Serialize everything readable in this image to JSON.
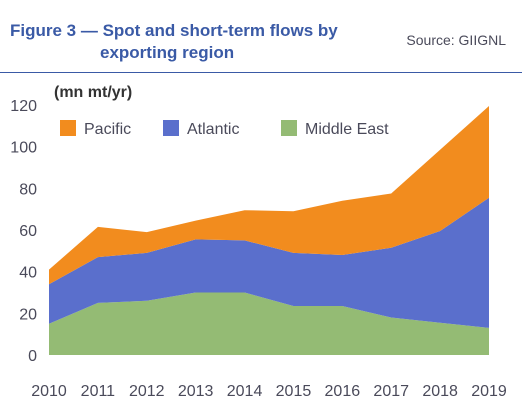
{
  "header": {
    "title_line1": "Figure 3 — Spot and short-term flows by",
    "title_line2": "exporting region",
    "source": "Source: GIIGNL"
  },
  "colors": {
    "pacific": "#f28c1e",
    "atlantic": "#5a6fcc",
    "middle_east": "#94bb74",
    "rule": "#3a5aa6"
  },
  "chart_data": {
    "type": "area",
    "stacked": true,
    "ylabel": "(mn mt/yr)",
    "ylim": [
      0,
      120
    ],
    "yticks": [
      0,
      20,
      40,
      60,
      80,
      100,
      120
    ],
    "x": [
      "2010",
      "2011",
      "2012",
      "2013",
      "2014",
      "2015",
      "2016",
      "2017",
      "2018",
      "2019"
    ],
    "legend_position": "top-left",
    "grid": false,
    "series": [
      {
        "name": "Middle East",
        "color_key": "middle_east",
        "values": [
          15,
          25,
          26,
          30,
          30,
          23.5,
          23.5,
          18,
          15.5,
          13
        ]
      },
      {
        "name": "Atlantic",
        "color_key": "atlantic",
        "values": [
          19,
          22,
          23,
          25.5,
          25,
          25.5,
          24.5,
          33.5,
          44,
          62.5
        ]
      },
      {
        "name": "Pacific",
        "color_key": "pacific",
        "values": [
          7,
          14.5,
          10,
          9,
          14.5,
          20,
          26,
          26,
          39,
          44
        ]
      }
    ],
    "legend_order": [
      "Pacific",
      "Atlantic",
      "Middle East"
    ]
  }
}
